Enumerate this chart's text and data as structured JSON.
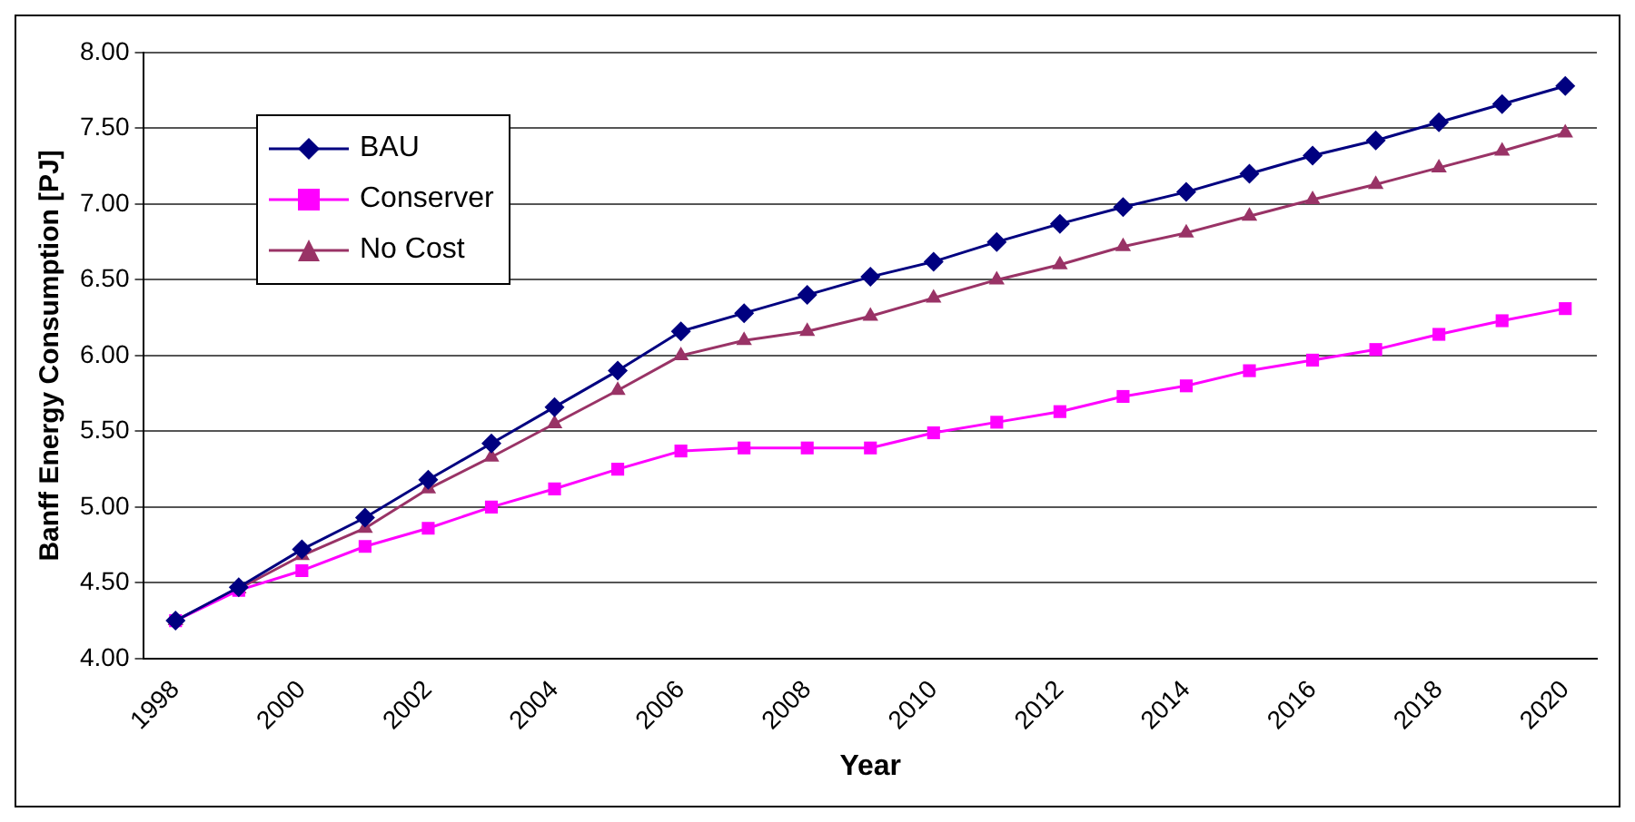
{
  "chart_data": {
    "type": "line",
    "xlabel": "Year",
    "ylabel": "Banff Energy Consumption [PJ]",
    "categories": [
      "1998",
      null,
      "2000",
      null,
      "2002",
      null,
      "2004",
      null,
      "2006",
      null,
      "2008",
      null,
      "2010",
      null,
      "2012",
      null,
      "2014",
      null,
      "2016",
      null,
      "2018",
      null,
      "2020"
    ],
    "series": [
      {
        "name": "BAU",
        "color": "#000080",
        "marker": "diamond",
        "values": [
          4.25,
          4.47,
          4.72,
          4.93,
          5.18,
          5.42,
          5.66,
          5.9,
          6.16,
          6.28,
          6.4,
          6.52,
          6.62,
          6.75,
          6.87,
          6.98,
          7.08,
          7.2,
          7.32,
          7.42,
          7.54,
          7.66,
          7.78
        ]
      },
      {
        "name": "Conserver",
        "color": "#ff00ff",
        "marker": "square",
        "values": [
          4.25,
          4.45,
          4.58,
          4.74,
          4.86,
          5.0,
          5.12,
          5.25,
          5.37,
          5.39,
          5.39,
          5.39,
          5.49,
          5.56,
          5.63,
          5.73,
          5.8,
          5.9,
          5.97,
          6.04,
          6.14,
          6.23,
          6.31
        ]
      },
      {
        "name": "No Cost",
        "color": "#993366",
        "marker": "triangle",
        "values": [
          4.25,
          4.46,
          4.68,
          4.86,
          5.12,
          5.33,
          5.55,
          5.77,
          6.0,
          6.1,
          6.16,
          6.26,
          6.38,
          6.5,
          6.6,
          6.72,
          6.81,
          6.92,
          7.03,
          7.13,
          7.24,
          7.35,
          7.47
        ]
      }
    ],
    "ylim": [
      4,
      8
    ],
    "yticks": [
      {
        "value": 4,
        "label": "4.00"
      },
      {
        "value": 4.5,
        "label": "4.50"
      },
      {
        "value": 5,
        "label": "5.00"
      },
      {
        "value": 5.5,
        "label": "5.50"
      },
      {
        "value": 6,
        "label": "6.00"
      },
      {
        "value": 6.5,
        "label": "6.50"
      },
      {
        "value": 7,
        "label": "7.00"
      },
      {
        "value": 7.5,
        "label": "7.50"
      },
      {
        "value": 8,
        "label": "8.00"
      }
    ],
    "grid": "y",
    "legend": "top left",
    "line_style": "solid"
  }
}
